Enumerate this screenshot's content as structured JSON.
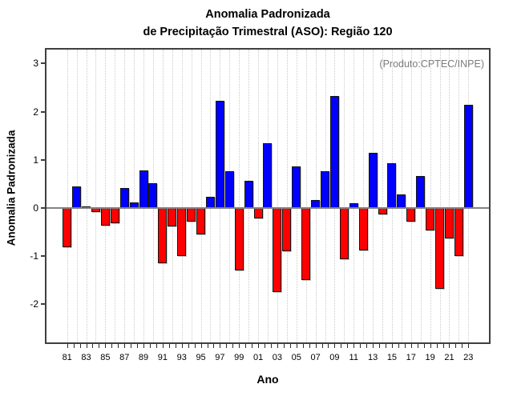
{
  "title": {
    "line1": "Anomalia Padronizada",
    "line2": "de Precipitação Trimestral (ASO): Região 120"
  },
  "annotation": "(Produto:CPTEC/INPE)",
  "chart_data": {
    "type": "bar",
    "title": "Anomalia Padronizada de Precipitação Trimestral (ASO): Região 120",
    "xlabel": "Ano",
    "ylabel": "Anomalia Padronizada",
    "categories": [
      "81",
      "82",
      "83",
      "84",
      "85",
      "86",
      "87",
      "88",
      "89",
      "90",
      "91",
      "92",
      "93",
      "94",
      "95",
      "96",
      "97",
      "98",
      "99",
      "00",
      "01",
      "02",
      "03",
      "04",
      "05",
      "06",
      "07",
      "08",
      "09",
      "10",
      "11",
      "12",
      "13",
      "14",
      "15",
      "16",
      "17",
      "18",
      "19",
      "20",
      "21",
      "22",
      "23"
    ],
    "values": [
      -0.82,
      0.45,
      0.03,
      -0.08,
      -0.37,
      -0.31,
      0.42,
      0.12,
      0.78,
      0.52,
      -1.15,
      -0.38,
      -1.0,
      -0.29,
      -0.55,
      0.24,
      2.22,
      0.76,
      -1.3,
      0.57,
      -0.22,
      1.35,
      -1.75,
      -0.9,
      0.86,
      -1.5,
      0.17,
      0.77,
      2.33,
      -1.07,
      0.1,
      -0.88,
      1.14,
      -0.13,
      0.93,
      0.29,
      -0.29,
      0.66,
      -0.47,
      -1.67,
      -0.63,
      -1.0,
      2.15
    ],
    "x_tick_labels": [
      "81",
      "83",
      "85",
      "87",
      "89",
      "91",
      "93",
      "95",
      "97",
      "99",
      "01",
      "03",
      "05",
      "07",
      "09",
      "11",
      "13",
      "15",
      "17",
      "19",
      "21",
      "23"
    ],
    "yticks": [
      -2,
      -1,
      0,
      1,
      2,
      3
    ],
    "ylim": [
      -2.79,
      3.29
    ],
    "grid": "vertical-dotted-per-year",
    "legend": "none",
    "colors": {
      "positive": "#0000ff",
      "negative": "#ff0000",
      "bar_border": "#141414",
      "zero_line": "#828282",
      "frame": "#3f3f3f",
      "gridline": "#cbcbcb",
      "annotation_text": "#7c7c7c"
    }
  }
}
